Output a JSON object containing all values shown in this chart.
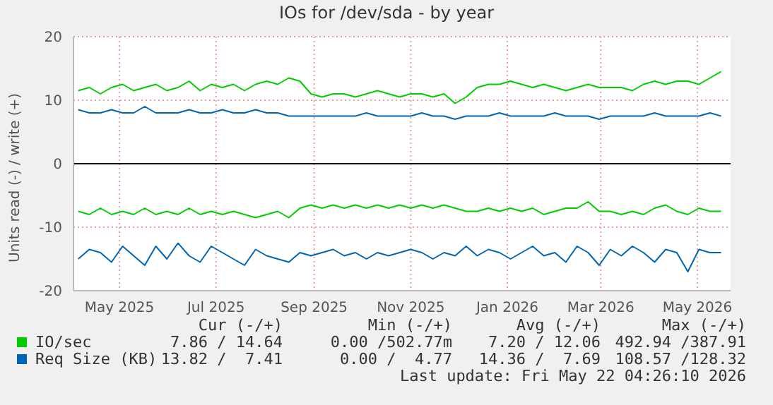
{
  "chart_data": {
    "type": "line",
    "title": "IOs for /dev/sda - by year",
    "ylabel": "Units read (-) / write (+)",
    "x": [
      "2025-04-05",
      "2025-04-12",
      "2025-04-19",
      "2025-04-26",
      "2025-05-03",
      "2025-05-10",
      "2025-05-17",
      "2025-05-24",
      "2025-05-31",
      "2025-06-07",
      "2025-06-14",
      "2025-06-21",
      "2025-06-28",
      "2025-07-05",
      "2025-07-12",
      "2025-07-19",
      "2025-07-26",
      "2025-08-02",
      "2025-08-09",
      "2025-08-16",
      "2025-08-23",
      "2025-08-30",
      "2025-09-06",
      "2025-09-13",
      "2025-09-20",
      "2025-09-27",
      "2025-10-04",
      "2025-10-11",
      "2025-10-18",
      "2025-10-25",
      "2025-11-01",
      "2025-11-08",
      "2025-11-15",
      "2025-11-22",
      "2025-11-29",
      "2025-12-06",
      "2025-12-13",
      "2025-12-20",
      "2025-12-27",
      "2026-01-03",
      "2026-01-10",
      "2026-01-17",
      "2026-01-24",
      "2026-01-31",
      "2026-02-07",
      "2026-02-14",
      "2026-02-21",
      "2026-02-28",
      "2026-03-07",
      "2026-03-14",
      "2026-03-21",
      "2026-03-28",
      "2026-04-04",
      "2026-04-11",
      "2026-04-18",
      "2026-04-25",
      "2026-05-02",
      "2026-05-09",
      "2026-05-16"
    ],
    "series": [
      {
        "name": "IO/sec",
        "color": "#00cc00",
        "values": [
          11.5,
          12,
          11,
          12,
          12.5,
          11.5,
          12,
          12.5,
          11.5,
          12,
          13,
          11.5,
          12.5,
          12,
          12.5,
          11.5,
          12.5,
          13,
          12.5,
          13.5,
          13,
          11,
          10.5,
          11,
          11,
          10.5,
          11,
          11.5,
          11,
          10.5,
          11,
          11,
          10.5,
          11,
          9.5,
          10.5,
          12,
          12.5,
          12.5,
          13,
          12.5,
          12,
          12.5,
          12,
          11.5,
          12,
          12.5,
          12,
          12,
          12,
          11.5,
          12.5,
          13,
          12.5,
          13,
          13,
          12.5,
          13.5,
          14.5
        ]
      },
      {
        "color": "#00cc00",
        "values": [
          -7.5,
          -8,
          -7,
          -8,
          -7.5,
          -8,
          -7,
          -8,
          -7.5,
          -8,
          -7,
          -8,
          -7.5,
          -8,
          -7.5,
          -8,
          -8.5,
          -8,
          -7.5,
          -8.5,
          -7,
          -6.5,
          -7,
          -6.5,
          -7,
          -6.5,
          -7,
          -6.5,
          -7,
          -6.5,
          -7,
          -6.5,
          -7,
          -6.5,
          -7,
          -7.5,
          -7.5,
          -7,
          -7.5,
          -7,
          -7.5,
          -7,
          -8,
          -7.5,
          -7,
          -7,
          -6,
          -7.5,
          -7.5,
          -8,
          -7.5,
          -8,
          -7,
          -6.5,
          -7.5,
          -8,
          -7,
          -7.5,
          -7.5
        ]
      },
      {
        "name": "Req Size (KB)",
        "color": "#0066b3",
        "values": [
          8.5,
          8,
          8,
          8.5,
          8,
          8,
          9,
          8,
          8,
          8,
          8.5,
          8,
          8,
          8.5,
          8,
          8,
          8.5,
          8,
          8,
          7.5,
          7.5,
          7.5,
          7.5,
          7.5,
          7.5,
          7.5,
          8,
          7.5,
          7.5,
          7.5,
          7.5,
          8,
          7.5,
          7.5,
          7,
          7.5,
          7.5,
          7.5,
          8,
          7.5,
          7.5,
          7.5,
          7.5,
          8,
          7.5,
          7.5,
          7.5,
          7,
          7.5,
          7.5,
          7.5,
          7.5,
          8,
          7.5,
          7.5,
          7.5,
          7.5,
          8,
          7.5
        ]
      },
      {
        "color": "#0066b3",
        "values": [
          -15,
          -13.5,
          -14,
          -15.5,
          -13,
          -14.5,
          -16,
          -13,
          -15,
          -12.5,
          -14.5,
          -15.5,
          -13,
          -14,
          -15,
          -16,
          -13.5,
          -14.5,
          -15,
          -15.5,
          -14,
          -14.5,
          -14,
          -13.5,
          -14.5,
          -14,
          -15,
          -14,
          -14.5,
          -14,
          -13.5,
          -14,
          -15,
          -14,
          -14.5,
          -13,
          -14.5,
          -13.5,
          -14,
          -15,
          -14,
          -13,
          -14.5,
          -14,
          -15.5,
          -13,
          -14,
          -16,
          -13.5,
          -14.5,
          -13,
          -14,
          -15.5,
          -13.5,
          -14,
          -17,
          -13.5,
          -14,
          -14
        ]
      }
    ],
    "xlim": [
      "2025-04-02",
      "2026-05-22"
    ],
    "xticks": [
      {
        "value": "2025-05-01",
        "label": "May 2025"
      },
      {
        "value": "2025-07-01",
        "label": "Jul 2025"
      },
      {
        "value": "2025-09-01",
        "label": "Sep 2025"
      },
      {
        "value": "2025-11-01",
        "label": "Nov 2025"
      },
      {
        "value": "2026-01-01",
        "label": "Jan 2026"
      },
      {
        "value": "2026-03-01",
        "label": "Mar 2026"
      },
      {
        "value": "2026-05-01",
        "label": "May 2026"
      }
    ],
    "ylim": [
      -20,
      20
    ],
    "yticks": [
      -20,
      -10,
      0,
      10,
      20
    ],
    "ref_lines": [
      {
        "axis": "y",
        "value": 0,
        "color": "#000000"
      }
    ],
    "grid": true,
    "legend": "bottom",
    "annotations": [
      "Cur (-/+)",
      "Min (-/+)",
      "Avg (-/+)",
      "Max (-/+)",
      "7.86 / 14.64",
      "0.00 /502.77m",
      "7.20 / 12.06",
      "492.94 /387.91",
      "13.82 /  7.41",
      "0.00 /  4.77",
      "14.36 /  7.69",
      "108.57 /128.32",
      "Last update: Fri May 22 04:26:10 2026"
    ]
  }
}
